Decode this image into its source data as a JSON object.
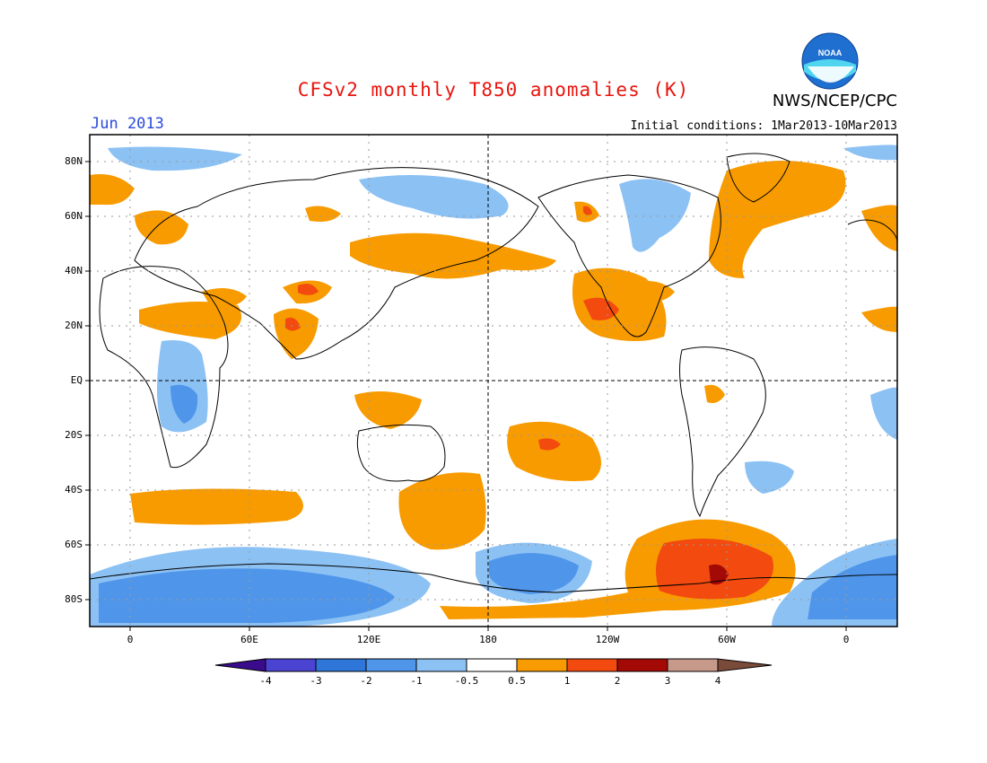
{
  "header": {
    "title": "CFSv2 monthly T850 anomalies (K)",
    "agency": "NWS/NCEP/CPC",
    "month": "Jun 2013",
    "initial_conditions": "Initial conditions: 1Mar2013-10Mar2013",
    "logo_text": "NOAA"
  },
  "map": {
    "projection": "cylindrical equidistant",
    "lon_range": [
      -20,
      390
    ],
    "lat_range": [
      -90,
      90
    ],
    "lat_labels": [
      "80N",
      "60N",
      "40N",
      "20N",
      "EQ",
      "20S",
      "40S",
      "60S",
      "80S"
    ],
    "lon_labels": [
      "0",
      "60E",
      "120E",
      "180",
      "120W",
      "60W",
      "0"
    ]
  },
  "colorbar": {
    "labels": [
      "-4",
      "-3",
      "-2",
      "-1",
      "-0.5",
      "0.5",
      "1",
      "2",
      "3",
      "4"
    ],
    "colors": [
      "#3a0c8c",
      "#4b43d1",
      "#2e76d8",
      "#4f96ea",
      "#8cc1f4",
      "#ffffff",
      "#f79b00",
      "#f24a0f",
      "#a30a05",
      "#c7998a",
      "#7a4a3a"
    ]
  },
  "anomaly_colors": {
    "light_blue": "#8cc1f4",
    "blue": "#4f96ea",
    "orange": "#f79b00",
    "red_orange": "#f24a0f",
    "dark_red": "#a30a05"
  }
}
